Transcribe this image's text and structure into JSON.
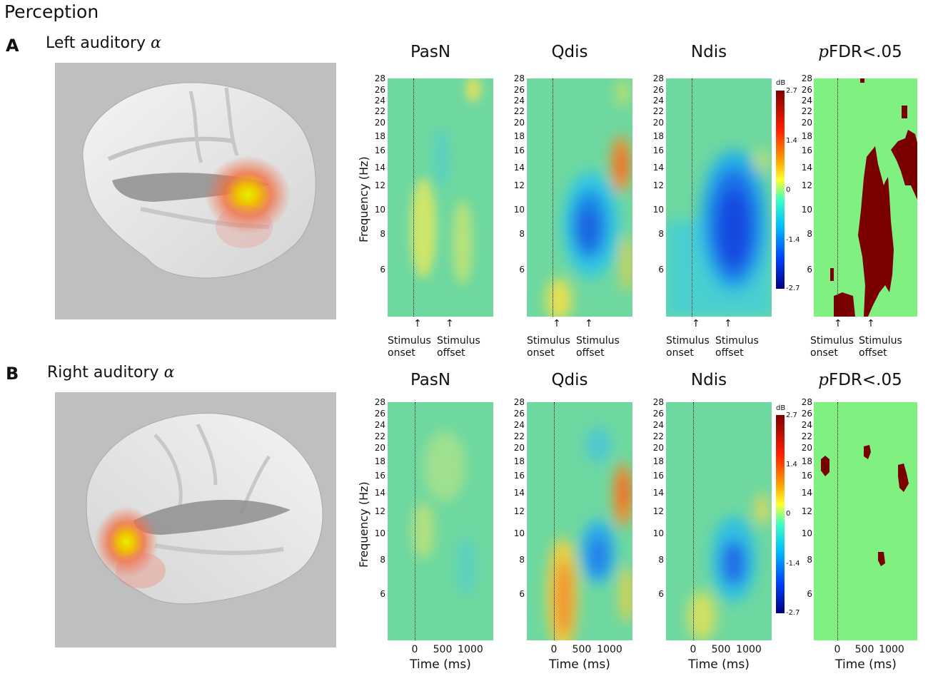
{
  "page_title": "Perception",
  "rows": [
    {
      "letter": "A",
      "brain_label": "Left auditory",
      "greek": "α",
      "columns": [
        {
          "title": "PasN"
        },
        {
          "title": "Qdis"
        },
        {
          "title": "Ndis"
        },
        {
          "title_p": "p",
          "title_rest": "FDR<.05"
        }
      ],
      "annotations": {
        "onset": "Stimulus\nonset",
        "offset": "Stimulus\noffset"
      }
    },
    {
      "letter": "B",
      "brain_label": "Right auditory",
      "greek": "α",
      "columns": [
        {
          "title": "PasN"
        },
        {
          "title": "Qdis"
        },
        {
          "title": "Ndis"
        },
        {
          "title_p": "p",
          "title_rest": "FDR<.05"
        }
      ]
    }
  ],
  "axes": {
    "ylabel": "Frequency (Hz)",
    "xlabel": "Time (ms)",
    "yticks": [
      "28",
      "26",
      "24",
      "22",
      "20",
      "18",
      "16",
      "14",
      "12",
      "10",
      "8",
      "6"
    ],
    "xticks": [
      "0",
      "500",
      "1000"
    ]
  },
  "colorbar": {
    "unit": "dB",
    "ticks": [
      "2.7",
      "1.4",
      "0",
      "-1.4",
      "-2.7"
    ]
  },
  "chart_data": {
    "type": "heatmap",
    "x_range_ms": [
      -600,
      1400
    ],
    "y_range_hz": [
      4,
      28
    ],
    "colorbar_range_db": [
      -2.7,
      2.7
    ],
    "colors": {
      "significant": "#7a0000",
      "nonsignificant": "#80f080"
    }
  }
}
